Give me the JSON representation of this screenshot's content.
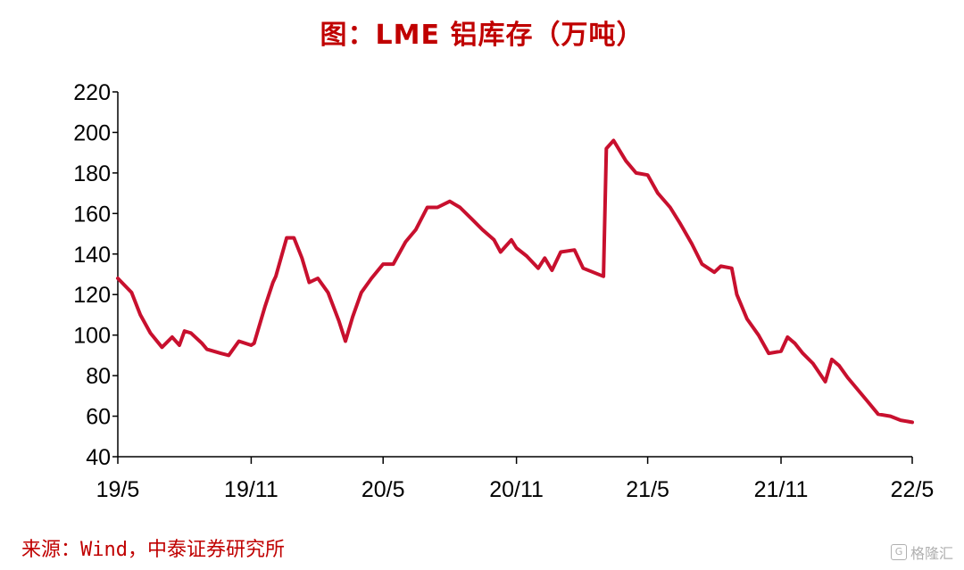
{
  "title": "图：LME 铝库存（万吨）",
  "source": "来源：Wind，中泰证券研究所",
  "watermark": "格隆汇",
  "colors": {
    "series": "#C8102E",
    "title": "#C00000",
    "axis": "#000000"
  },
  "chart_data": {
    "type": "line",
    "title": "图：LME 铝库存（万吨）",
    "xlabel": "",
    "ylabel": "",
    "ylim": [
      40,
      220
    ],
    "yticks": [
      40,
      60,
      80,
      100,
      120,
      140,
      160,
      180,
      200,
      220
    ],
    "xlim": [
      "2019-05",
      "2022-05"
    ],
    "xticks": [
      "19/5",
      "19/11",
      "20/5",
      "20/11",
      "21/5",
      "21/11",
      "22/5"
    ],
    "grid": false,
    "legend": "none",
    "series": [
      {
        "name": "",
        "x": [
          "2019-05",
          "2019-05-20",
          "2019-06",
          "2019-06-15",
          "2019-07",
          "2019-07-15",
          "2019-07-25",
          "2019-08",
          "2019-08-10",
          "2019-08-25",
          "2019-09",
          "2019-09-20",
          "2019-10",
          "2019-10-15",
          "2019-11",
          "2019-11-05",
          "2019-11-20",
          "2019-12",
          "2019-12-05",
          "2019-12-20",
          "2019-12-30",
          "2020-01-10",
          "2020-01-20",
          "2020-02",
          "2020-02-15",
          "2020-03",
          "2020-03-10",
          "2020-03-20",
          "2020-04",
          "2020-04-15",
          "2020-05",
          "2020-05-15",
          "2020-06",
          "2020-06-15",
          "2020-07",
          "2020-07-15",
          "2020-08",
          "2020-08-15",
          "2020-09",
          "2020-09-15",
          "2020-10",
          "2020-10-10",
          "2020-10-25",
          "2020-11",
          "2020-11-15",
          "2020-12",
          "2020-12-10",
          "2020-12-20",
          "2021-01",
          "2021-01-20",
          "2021-02",
          "2021-03",
          "2021-03-05",
          "2021-03-15",
          "2021-04",
          "2021-04-15",
          "2021-05",
          "2021-05-15",
          "2021-06",
          "2021-06-15",
          "2021-07",
          "2021-07-15",
          "2021-08",
          "2021-08-10",
          "2021-08-25",
          "2021-09",
          "2021-09-15",
          "2021-10",
          "2021-10-15",
          "2021-11",
          "2021-11-10",
          "2021-11-20",
          "2021-12",
          "2021-12-15",
          "2022-01",
          "2022-01-10",
          "2022-01-20",
          "2022-02",
          "2022-02-15",
          "2022-03",
          "2022-03-15",
          "2022-04",
          "2022-04-15",
          "2022-05"
        ],
        "values": [
          128,
          121,
          110,
          101,
          94,
          99,
          95,
          102,
          101,
          96,
          93,
          91,
          90,
          97,
          95,
          96,
          114,
          126,
          129,
          148,
          148,
          138,
          126,
          128,
          121,
          107,
          97,
          109,
          121,
          128,
          135,
          135,
          146,
          152,
          163,
          163,
          166,
          163,
          157,
          152,
          147,
          141,
          147,
          143,
          139,
          133,
          138,
          132,
          141,
          142,
          133,
          129,
          192,
          196,
          186,
          180,
          179,
          170,
          163,
          155,
          145,
          135,
          131,
          134,
          133,
          120,
          108,
          100,
          91,
          92,
          99,
          96,
          91,
          86,
          77,
          88,
          85,
          79,
          73,
          67,
          61,
          60,
          58,
          57
        ]
      }
    ]
  }
}
